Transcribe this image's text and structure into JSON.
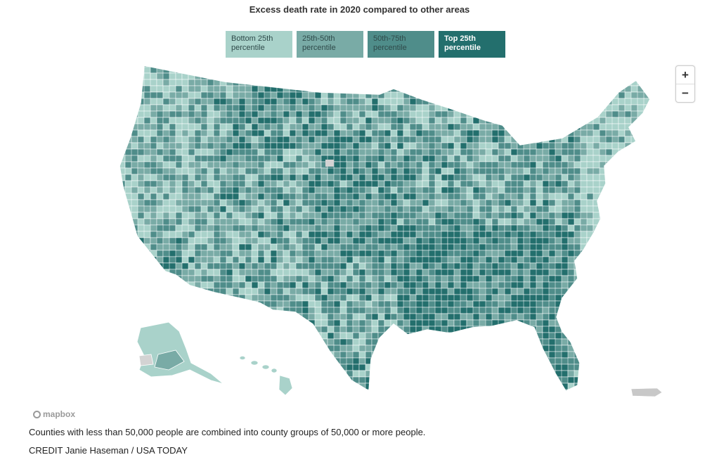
{
  "title": "Excess death rate in 2020 compared to other areas",
  "colors": {
    "q1": "#a9d2ca",
    "q2": "#79aba6",
    "q3": "#4f8d8a",
    "q4": "#236f6d",
    "nodata": "#d3d3d3",
    "border": "#ffffff"
  },
  "legend": [
    {
      "label": "Bottom 25th percentile",
      "line1": "Bottom 25th",
      "line2": "percentile",
      "color": "#a9d2ca"
    },
    {
      "label": "25th-50th percentile",
      "line1": "25th-50th",
      "line2": "percentile",
      "color": "#79aba6"
    },
    {
      "label": "50th-75th percentile",
      "line1": "50th-75th",
      "line2": "percentile",
      "color": "#4f8d8a"
    },
    {
      "label": "Top 25th percentile",
      "line1": "Top 25th",
      "line2": "percentile",
      "color": "#236f6d",
      "active": true
    }
  ],
  "zoom": {
    "in": "+",
    "out": "−"
  },
  "attribution": "mapbox",
  "note": "Counties with less than 50,000 people are combined into county groups of 50,000 or more people.",
  "credit": "CREDIT Janie Haseman / USA TODAY"
}
